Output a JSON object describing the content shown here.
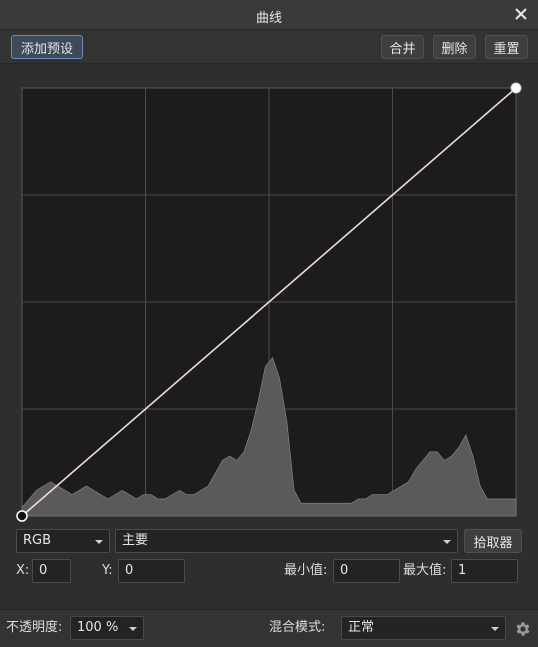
{
  "window": {
    "title": "曲线"
  },
  "toolbar": {
    "add_preset_label": "添加预设",
    "merge_label": "合并",
    "delete_label": "删除",
    "reset_label": "重置"
  },
  "channel": {
    "value": "RGB"
  },
  "mode": {
    "value": "主要"
  },
  "picker": {
    "label": "拾取器"
  },
  "coords": {
    "x_label": "X:",
    "x_value": "0",
    "y_label": "Y:",
    "y_value": "0",
    "min_label": "最小值:",
    "min_value": "0",
    "max_label": "最大值:",
    "max_value": "1"
  },
  "footer": {
    "opacity_label": "不透明度:",
    "opacity_value": "100 %",
    "blend_label": "混合模式:",
    "blend_value": "正常"
  },
  "icons": {
    "close": "close-icon",
    "gear": "gear-icon"
  },
  "colors": {
    "accent": "#6f8bb0",
    "curve": "#f0d8e0",
    "histogram": "#5a5a5a",
    "graph_bg": "#1c1c1c"
  },
  "chart_data": {
    "type": "area",
    "curve_points": [
      [
        0,
        0
      ],
      [
        1,
        1
      ]
    ],
    "xlim": [
      0,
      1
    ],
    "ylim": [
      0,
      1
    ],
    "grid": true,
    "histogram": [
      0.02,
      0.04,
      0.06,
      0.07,
      0.08,
      0.07,
      0.06,
      0.05,
      0.06,
      0.07,
      0.06,
      0.05,
      0.04,
      0.05,
      0.06,
      0.05,
      0.04,
      0.05,
      0.05,
      0.04,
      0.04,
      0.05,
      0.06,
      0.05,
      0.05,
      0.06,
      0.07,
      0.1,
      0.13,
      0.14,
      0.13,
      0.15,
      0.2,
      0.27,
      0.35,
      0.37,
      0.32,
      0.22,
      0.06,
      0.03,
      0.03,
      0.03,
      0.03,
      0.03,
      0.03,
      0.03,
      0.03,
      0.04,
      0.04,
      0.05,
      0.05,
      0.05,
      0.06,
      0.07,
      0.08,
      0.11,
      0.13,
      0.15,
      0.15,
      0.13,
      0.14,
      0.16,
      0.19,
      0.14,
      0.07,
      0.04,
      0.04,
      0.04,
      0.04,
      0.04
    ]
  }
}
